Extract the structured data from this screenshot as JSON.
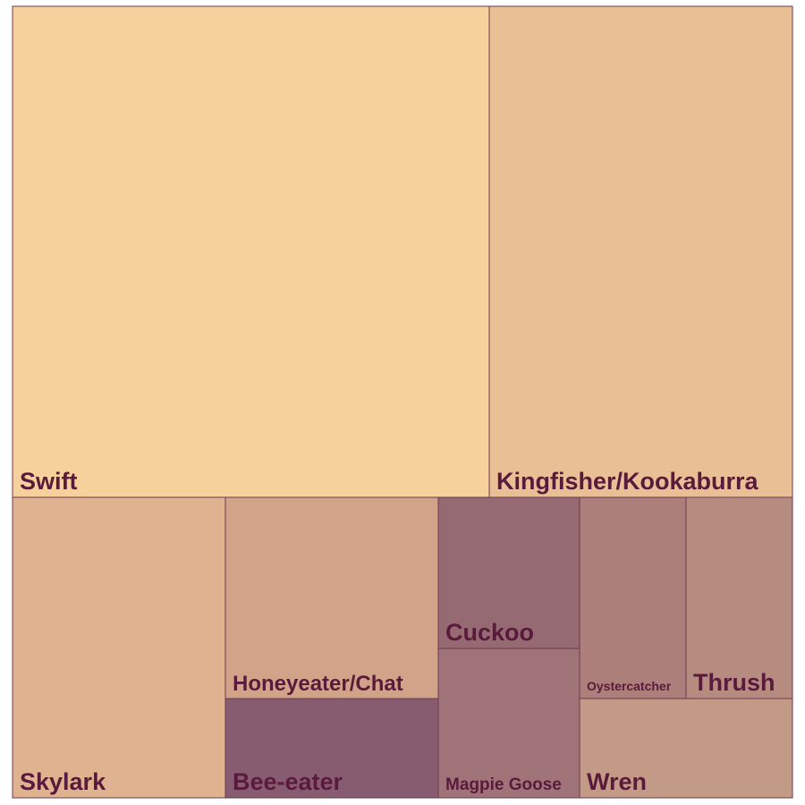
{
  "chart_data": {
    "type": "treemap",
    "title": "",
    "items": [
      {
        "name": "Swift",
        "value": 29.2,
        "color": "#f7d19b"
      },
      {
        "name": "Kingfisher/Kookaburra",
        "value": 18.6,
        "color": "#e9bf96"
      },
      {
        "name": "Skylark",
        "value": 10.0,
        "color": "#dfb38f"
      },
      {
        "name": "Honeyeater/Chat",
        "value": 7.0,
        "color": "#d1a48a"
      },
      {
        "name": "Bee-eater",
        "value": 3.2,
        "color": "#885c70"
      },
      {
        "name": "Cuckoo",
        "value": 3.1,
        "color": "#966a73"
      },
      {
        "name": "Magpie Goose",
        "value": 3.1,
        "color": "#9f7377"
      },
      {
        "name": "Oystercatcher",
        "value": 2.5,
        "color": "#ac7f7a"
      },
      {
        "name": "Thrush",
        "value": 2.5,
        "color": "#b78c80"
      },
      {
        "name": "Wren",
        "value": 2.5,
        "color": "#c39a85"
      }
    ]
  }
}
